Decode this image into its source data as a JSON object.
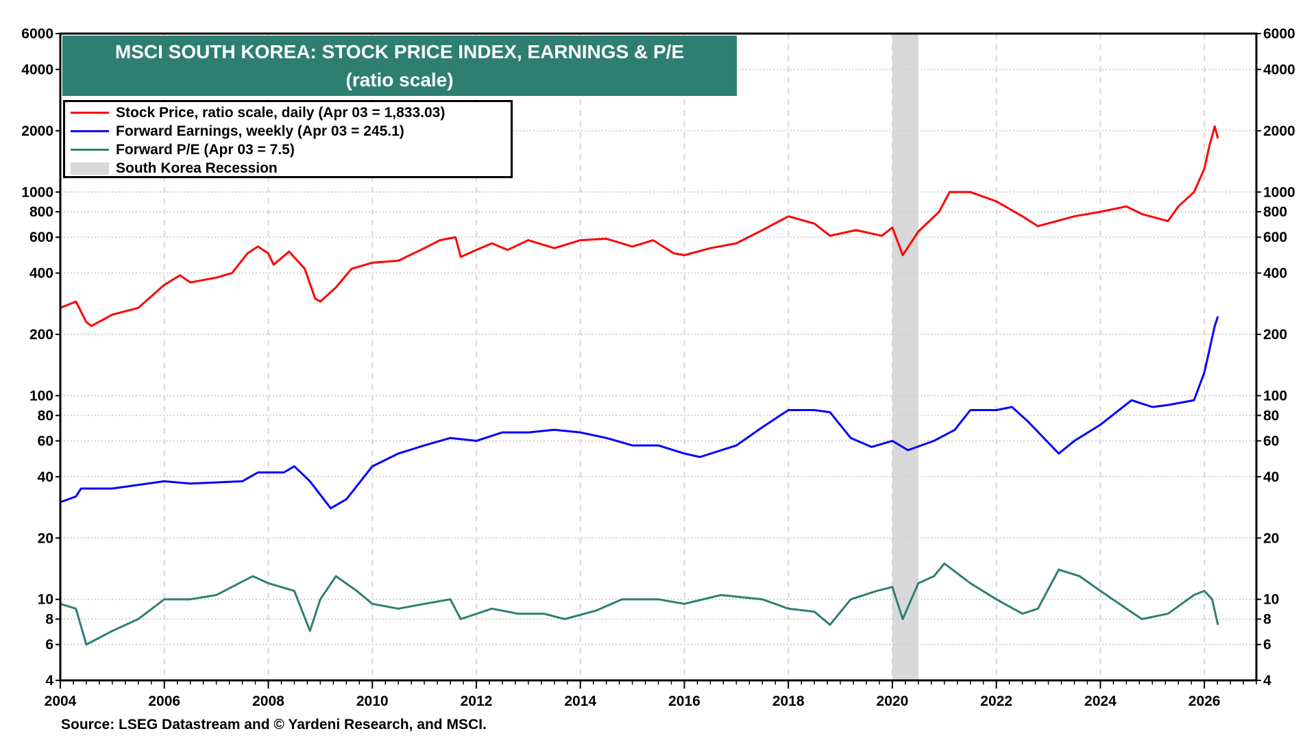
{
  "chart_data": {
    "type": "line",
    "title": "MSCI SOUTH KOREA: STOCK PRICE INDEX, EARNINGS & P/E",
    "subtitle": "(ratio scale)",
    "y_scale": "log",
    "ylim": [
      4,
      6000
    ],
    "xlim": [
      2004,
      2027
    ],
    "grid": true,
    "legend_position": "top-left",
    "y_ticks": [
      6000,
      4000,
      2000,
      1000,
      800,
      600,
      400,
      200,
      100,
      80,
      60,
      40,
      20,
      10,
      8,
      6,
      4
    ],
    "x_ticks": [
      "2004",
      "2006",
      "2008",
      "2010",
      "2012",
      "2014",
      "2016",
      "2018",
      "2020",
      "2022",
      "2024",
      "2026"
    ],
    "recession": {
      "name": "South Korea Recession",
      "start": 2020.0,
      "end": 2020.5,
      "color": "#d9d9d9"
    },
    "series": [
      {
        "name": "Stock Price, ratio scale, daily (Apr 03 = 1,833.03)",
        "color": "#ff0000",
        "x": [
          2004.0,
          2004.3,
          2004.5,
          2004.6,
          2005.0,
          2005.5,
          2006.0,
          2006.3,
          2006.5,
          2007.0,
          2007.3,
          2007.6,
          2007.8,
          2008.0,
          2008.1,
          2008.4,
          2008.7,
          2008.9,
          2009.0,
          2009.3,
          2009.6,
          2010.0,
          2010.5,
          2011.0,
          2011.3,
          2011.6,
          2011.7,
          2012.0,
          2012.3,
          2012.6,
          2013.0,
          2013.5,
          2014.0,
          2014.5,
          2015.0,
          2015.4,
          2015.8,
          2016.0,
          2016.5,
          2017.0,
          2017.5,
          2018.0,
          2018.5,
          2018.8,
          2019.3,
          2019.8,
          2020.0,
          2020.2,
          2020.5,
          2020.9,
          2021.1,
          2021.5,
          2022.0,
          2022.5,
          2022.8,
          2023.5,
          2024.0,
          2024.5,
          2024.8,
          2025.3,
          2025.5,
          2025.8,
          2026.0,
          2026.1,
          2026.2,
          2026.26
        ],
        "values": [
          270,
          290,
          230,
          220,
          250,
          270,
          350,
          390,
          360,
          380,
          400,
          500,
          540,
          500,
          440,
          510,
          420,
          300,
          290,
          340,
          420,
          450,
          460,
          530,
          580,
          600,
          480,
          520,
          560,
          520,
          580,
          530,
          580,
          590,
          540,
          580,
          500,
          490,
          530,
          560,
          650,
          760,
          700,
          610,
          650,
          610,
          670,
          490,
          640,
          800,
          1000,
          1000,
          900,
          760,
          680,
          760,
          800,
          850,
          780,
          720,
          850,
          1000,
          1300,
          1700,
          2100,
          1833
        ]
      },
      {
        "name": "Forward Earnings, weekly (Apr 03 = 245.1)",
        "color": "#0000ff",
        "x": [
          2004.0,
          2004.3,
          2004.4,
          2005.0,
          2006.0,
          2006.5,
          2007.5,
          2007.8,
          2008.3,
          2008.5,
          2008.8,
          2009.2,
          2009.5,
          2010.0,
          2010.5,
          2011.0,
          2011.5,
          2012.0,
          2012.5,
          2013.0,
          2013.5,
          2014.0,
          2014.5,
          2015.0,
          2015.5,
          2016.0,
          2016.3,
          2017.0,
          2017.5,
          2018.0,
          2018.5,
          2018.8,
          2019.2,
          2019.6,
          2020.0,
          2020.3,
          2020.8,
          2021.2,
          2021.5,
          2022.0,
          2022.3,
          2022.6,
          2023.2,
          2023.5,
          2024.0,
          2024.6,
          2025.0,
          2025.3,
          2025.8,
          2026.0,
          2026.2,
          2026.26
        ],
        "values": [
          30,
          32,
          35,
          35,
          38,
          37,
          38,
          42,
          42,
          45,
          38,
          28,
          31,
          45,
          52,
          57,
          62,
          60,
          66,
          66,
          68,
          66,
          62,
          57,
          57,
          52,
          50,
          57,
          70,
          85,
          85,
          83,
          62,
          56,
          60,
          54,
          60,
          68,
          85,
          85,
          88,
          75,
          52,
          60,
          72,
          95,
          88,
          90,
          95,
          130,
          220,
          245.1
        ]
      },
      {
        "name": "Forward P/E (Apr 03 = 7.5)",
        "color": "#2e7f72",
        "x": [
          2004.0,
          2004.3,
          2004.5,
          2005.0,
          2005.5,
          2006.0,
          2006.5,
          2007.0,
          2007.7,
          2008.0,
          2008.5,
          2008.8,
          2009.0,
          2009.3,
          2009.7,
          2010.0,
          2010.5,
          2011.0,
          2011.5,
          2011.7,
          2012.3,
          2012.8,
          2013.3,
          2013.7,
          2014.3,
          2014.8,
          2015.5,
          2016.0,
          2016.7,
          2017.5,
          2018.0,
          2018.5,
          2018.8,
          2019.2,
          2019.7,
          2020.0,
          2020.2,
          2020.5,
          2020.8,
          2021.0,
          2021.5,
          2022.0,
          2022.5,
          2022.8,
          2023.2,
          2023.6,
          2024.0,
          2024.5,
          2024.8,
          2025.3,
          2025.8,
          2026.0,
          2026.15,
          2026.26
        ],
        "values": [
          9.5,
          9,
          6,
          7,
          8,
          10,
          10,
          10.5,
          13,
          12,
          11,
          7,
          10,
          13,
          11,
          9.5,
          9,
          9.5,
          10,
          8,
          9,
          8.5,
          8.5,
          8,
          8.8,
          10,
          10,
          9.5,
          10.5,
          10,
          9,
          8.7,
          7.5,
          10,
          11,
          11.5,
          8,
          12,
          13,
          15,
          12,
          10,
          8.5,
          9,
          14,
          13,
          11,
          9,
          8,
          8.5,
          10.5,
          11,
          10,
          7.5
        ]
      }
    ],
    "source": "Source: LSEG Datastream and © Yardeni Research, and MSCI."
  }
}
